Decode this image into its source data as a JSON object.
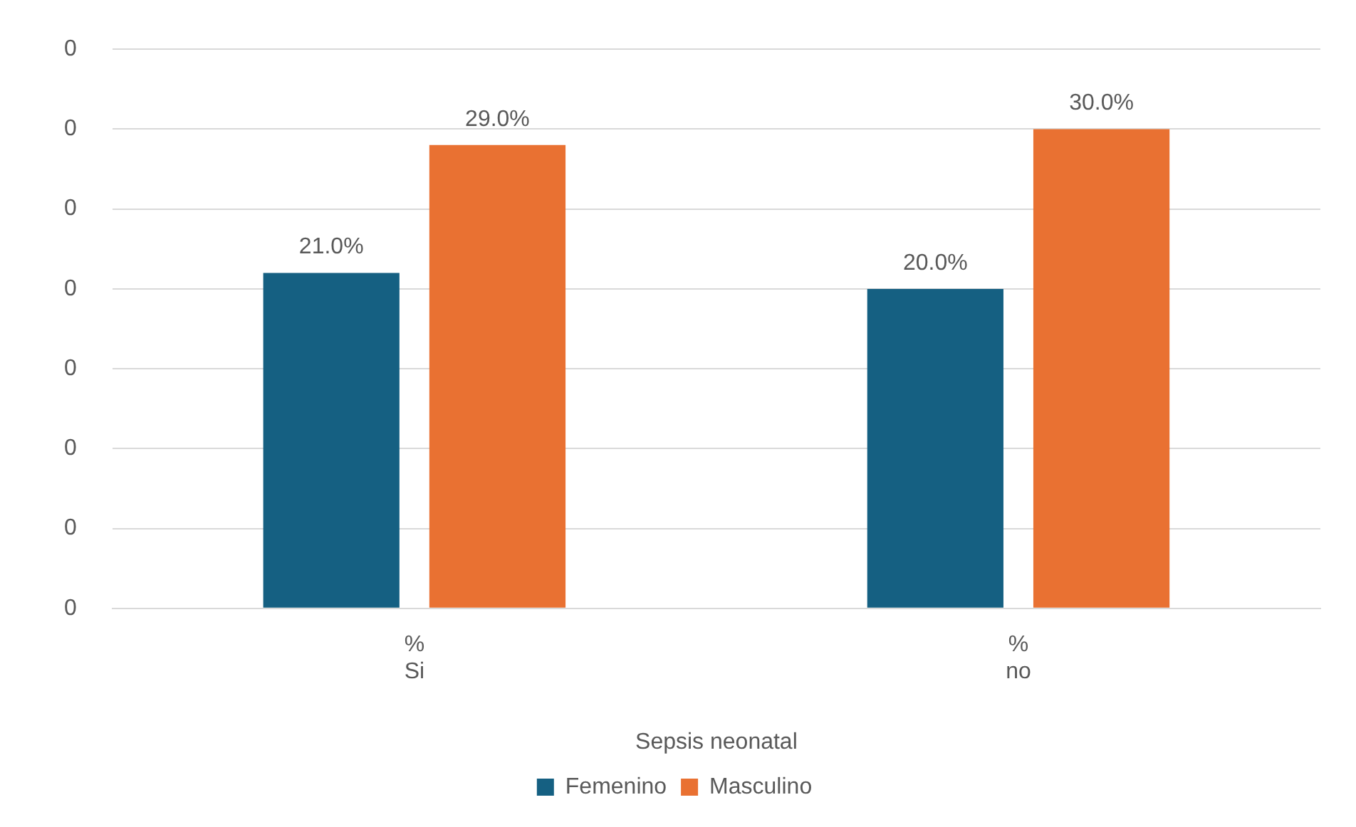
{
  "chart_data": {
    "type": "bar",
    "categories": [
      "%\nSi",
      "%\nno"
    ],
    "xlabel": "Sepsis neonatal",
    "series": [
      {
        "name": "Femenino",
        "color": "#156082",
        "values": [
          0.21,
          0.2
        ],
        "value_labels": [
          "21.0%",
          "20.0%"
        ]
      },
      {
        "name": "Masculino",
        "color": "#e97132",
        "values": [
          0.29,
          0.3
        ],
        "value_labels": [
          "29.0%",
          "30.0%"
        ]
      }
    ],
    "ylim": [
      0,
      0.35
    ],
    "yticks": [
      {
        "value": 0,
        "label": "0"
      },
      {
        "value": 0.05,
        "label": "0"
      },
      {
        "value": 0.1,
        "label": "0"
      },
      {
        "value": 0.15,
        "label": "0"
      },
      {
        "value": 0.2,
        "label": "0"
      },
      {
        "value": 0.25,
        "label": "0"
      },
      {
        "value": 0.3,
        "label": "0"
      },
      {
        "value": 0.35,
        "label": "0"
      }
    ],
    "grid": "y",
    "legend": "bottom"
  }
}
